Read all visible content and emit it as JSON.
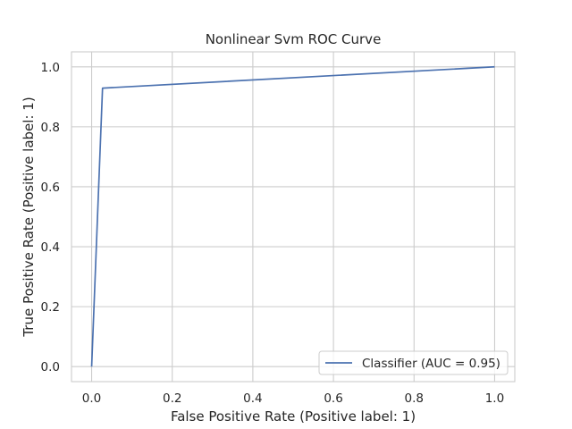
{
  "chart_data": {
    "type": "line",
    "title": "Nonlinear Svm ROC Curve",
    "xlabel": "False Positive Rate (Positive label: 1)",
    "ylabel": "True Positive Rate (Positive label: 1)",
    "xlim": [
      -0.05,
      1.05
    ],
    "ylim": [
      -0.05,
      1.05
    ],
    "xticks": [
      0.0,
      0.2,
      0.4,
      0.6,
      0.8,
      1.0
    ],
    "yticks": [
      0.0,
      0.2,
      0.4,
      0.6,
      0.8,
      1.0
    ],
    "xtick_labels": [
      "0.0",
      "0.2",
      "0.4",
      "0.6",
      "0.8",
      "1.0"
    ],
    "ytick_labels": [
      "0.0",
      "0.2",
      "0.4",
      "0.6",
      "0.8",
      "1.0"
    ],
    "grid": true,
    "legend_position": "bottom-right",
    "series": [
      {
        "name": "Classifier (AUC = 0.95)",
        "color": "#4c72b0",
        "x": [
          0.0,
          0.027,
          1.0
        ],
        "y": [
          0.0,
          0.929,
          1.0
        ]
      }
    ]
  }
}
